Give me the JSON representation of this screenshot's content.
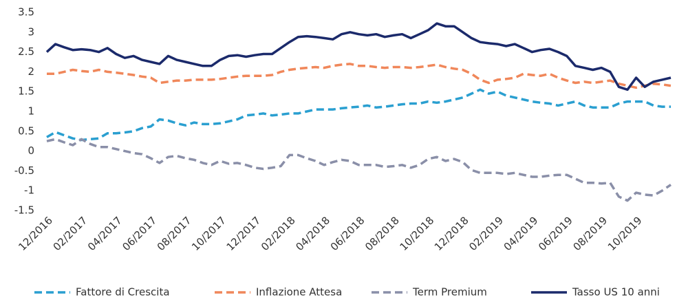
{
  "chart_data": {
    "type": "line",
    "categories": [
      "12/2016",
      null,
      null,
      null,
      "02/2017",
      null,
      null,
      null,
      "04/2017",
      null,
      null,
      null,
      "06/2017",
      null,
      null,
      null,
      "08/2017",
      null,
      null,
      null,
      "10/2017",
      null,
      null,
      null,
      "12/2017",
      null,
      null,
      null,
      "02/2018",
      null,
      null,
      null,
      "04/2018",
      null,
      null,
      null,
      "06/2018",
      null,
      null,
      null,
      "08/2018",
      null,
      null,
      null,
      "10/2018",
      null,
      null,
      null,
      "12/2018",
      null,
      null,
      null,
      "02/2019",
      null,
      null,
      null,
      "04/2019",
      null,
      null,
      null,
      "06/2019",
      null,
      null,
      null,
      "08/2019",
      null,
      null,
      null,
      "10/2019",
      null,
      null,
      null,
      null
    ],
    "ylim": [
      -1.5,
      3.5
    ],
    "yticks": [
      3.5,
      3,
      2.5,
      2,
      1.5,
      1,
      0.5,
      0,
      -0.5,
      -1,
      -1.5
    ],
    "grid": false,
    "legend": "bottom",
    "series": [
      {
        "name": "Fattore di Crescita",
        "color": "#2a9fd0",
        "dash": true,
        "values": [
          0.35,
          0.48,
          0.4,
          0.32,
          0.28,
          0.3,
          0.32,
          0.45,
          0.45,
          0.47,
          0.5,
          0.58,
          0.62,
          0.8,
          0.77,
          0.7,
          0.65,
          0.72,
          0.68,
          0.68,
          0.7,
          0.75,
          0.8,
          0.9,
          0.92,
          0.95,
          0.9,
          0.92,
          0.95,
          0.95,
          1.0,
          1.05,
          1.05,
          1.05,
          1.08,
          1.1,
          1.12,
          1.15,
          1.1,
          1.12,
          1.15,
          1.18,
          1.2,
          1.2,
          1.25,
          1.22,
          1.25,
          1.3,
          1.35,
          1.45,
          1.55,
          1.45,
          1.5,
          1.4,
          1.35,
          1.3,
          1.25,
          1.22,
          1.2,
          1.15,
          1.2,
          1.25,
          1.15,
          1.1,
          1.1,
          1.1,
          1.2,
          1.25,
          1.25,
          1.25,
          1.15,
          1.12,
          1.12
        ]
      },
      {
        "name": "Inflazione Attesa",
        "color": "#f0875a",
        "dash": true,
        "values": [
          1.95,
          1.95,
          2.0,
          2.05,
          2.02,
          2.0,
          2.05,
          2.0,
          1.98,
          1.95,
          1.92,
          1.88,
          1.85,
          1.72,
          1.75,
          1.78,
          1.78,
          1.8,
          1.8,
          1.8,
          1.82,
          1.85,
          1.88,
          1.9,
          1.9,
          1.9,
          1.92,
          2.0,
          2.05,
          2.08,
          2.1,
          2.12,
          2.1,
          2.15,
          2.18,
          2.2,
          2.15,
          2.15,
          2.12,
          2.1,
          2.12,
          2.12,
          2.1,
          2.12,
          2.15,
          2.18,
          2.12,
          2.08,
          2.05,
          1.95,
          1.8,
          1.72,
          1.8,
          1.82,
          1.85,
          1.95,
          1.92,
          1.9,
          1.95,
          1.85,
          1.78,
          1.72,
          1.75,
          1.72,
          1.75,
          1.78,
          1.7,
          1.65,
          1.6,
          1.65,
          1.7,
          1.68,
          1.65
        ]
      },
      {
        "name": "Term Premium",
        "color": "#8a8fa8",
        "dash": true,
        "values": [
          0.25,
          0.3,
          0.22,
          0.15,
          0.3,
          0.18,
          0.1,
          0.1,
          0.05,
          0.0,
          -0.05,
          -0.08,
          -0.18,
          -0.3,
          -0.15,
          -0.12,
          -0.18,
          -0.22,
          -0.3,
          -0.35,
          -0.25,
          -0.32,
          -0.3,
          -0.35,
          -0.42,
          -0.45,
          -0.42,
          -0.38,
          -0.1,
          -0.1,
          -0.18,
          -0.25,
          -0.35,
          -0.28,
          -0.22,
          -0.25,
          -0.35,
          -0.35,
          -0.35,
          -0.4,
          -0.38,
          -0.35,
          -0.42,
          -0.35,
          -0.2,
          -0.15,
          -0.25,
          -0.2,
          -0.28,
          -0.48,
          -0.55,
          -0.55,
          -0.55,
          -0.58,
          -0.55,
          -0.6,
          -0.65,
          -0.65,
          -0.62,
          -0.6,
          -0.6,
          -0.7,
          -0.8,
          -0.8,
          -0.82,
          -0.8,
          -1.15,
          -1.25,
          -1.05,
          -1.1,
          -1.12,
          -1.0,
          -0.85
        ]
      },
      {
        "name": "Tasso US 10 anni",
        "color": "#1b2a6b",
        "dash": false,
        "values": [
          2.5,
          2.7,
          2.62,
          2.55,
          2.57,
          2.55,
          2.5,
          2.6,
          2.45,
          2.35,
          2.4,
          2.3,
          2.25,
          2.2,
          2.4,
          2.3,
          2.25,
          2.2,
          2.15,
          2.15,
          2.3,
          2.4,
          2.42,
          2.38,
          2.42,
          2.45,
          2.45,
          2.6,
          2.75,
          2.88,
          2.9,
          2.88,
          2.85,
          2.82,
          2.95,
          3.0,
          2.95,
          2.92,
          2.95,
          2.88,
          2.92,
          2.95,
          2.85,
          2.95,
          3.05,
          3.22,
          3.15,
          3.15,
          3.0,
          2.85,
          2.75,
          2.72,
          2.7,
          2.65,
          2.7,
          2.6,
          2.5,
          2.55,
          2.58,
          2.5,
          2.4,
          2.15,
          2.1,
          2.05,
          2.1,
          2.0,
          1.62,
          1.55,
          1.85,
          1.62,
          1.75,
          1.8,
          1.85
        ]
      }
    ]
  }
}
